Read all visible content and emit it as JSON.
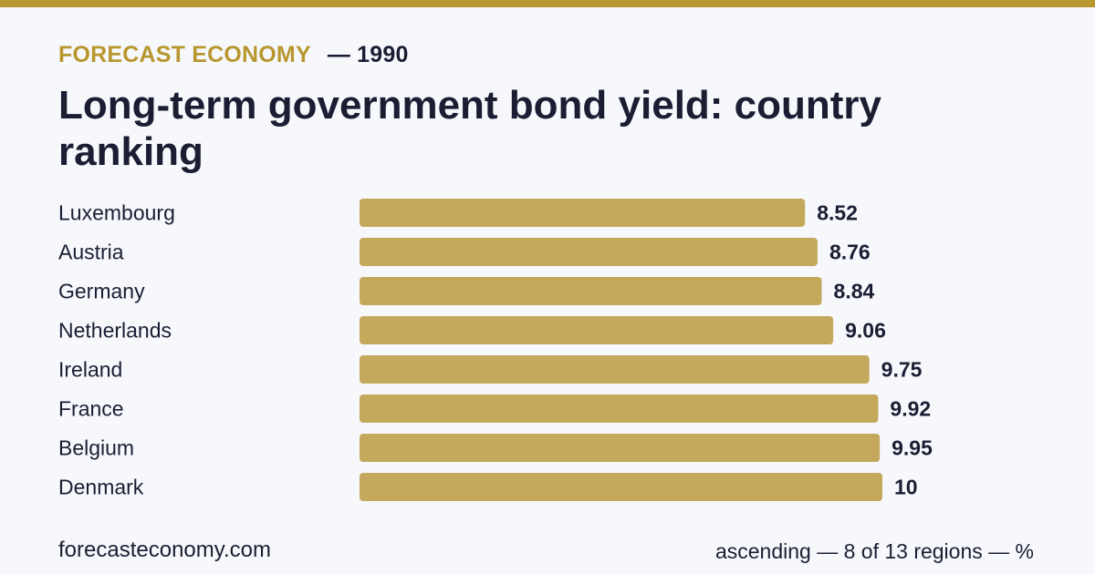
{
  "header": {
    "brand": "FORECAST ECONOMY",
    "year_label": "— 1990",
    "title": "Long-term government bond yield: country ranking"
  },
  "footer": {
    "site": "forecasteconomy.com",
    "note": "ascending — 8 of 13 regions — %"
  },
  "colors": {
    "accent": "#b8972f",
    "bar": "#c4a95d",
    "text": "#1c1d33",
    "background": "#f7f8fc"
  },
  "chart_data": {
    "type": "bar",
    "orientation": "horizontal",
    "sort": "ascending",
    "categories": [
      "Luxembourg",
      "Austria",
      "Germany",
      "Netherlands",
      "Ireland",
      "France",
      "Belgium",
      "Denmark"
    ],
    "values": [
      8.52,
      8.76,
      8.84,
      9.06,
      9.75,
      9.92,
      9.95,
      10
    ],
    "value_labels": [
      "8.52",
      "8.76",
      "8.84",
      "9.06",
      "9.75",
      "9.92",
      "9.95",
      "10"
    ],
    "title": "Long-term government bond yield: country ranking",
    "xlabel": "",
    "ylabel": "",
    "grid": false
  }
}
